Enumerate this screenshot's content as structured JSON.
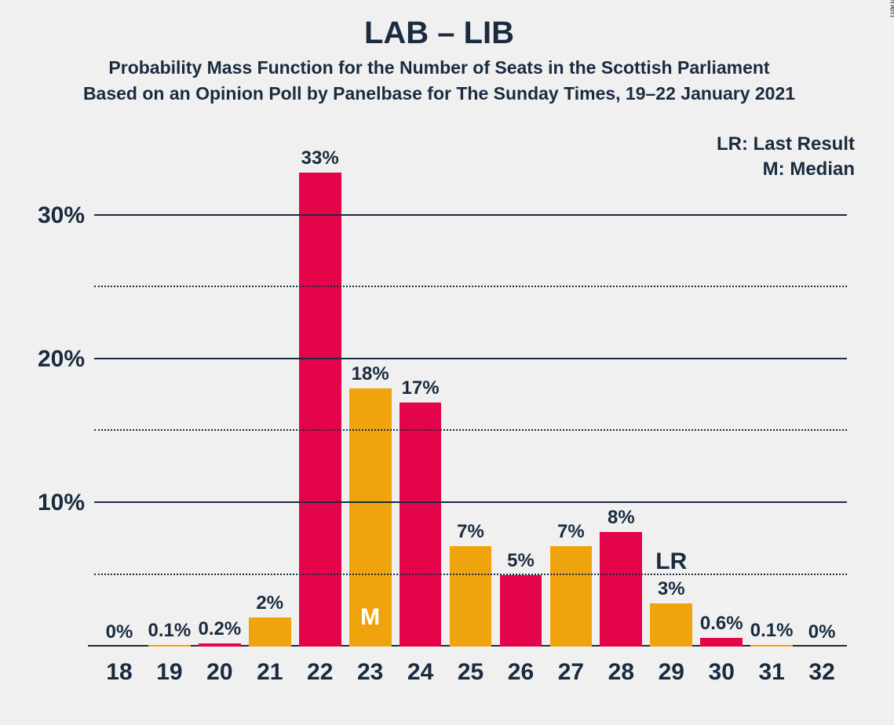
{
  "chart": {
    "type": "bar",
    "title": "LAB – LIB",
    "title_fontsize": 40,
    "subtitle1": "Probability Mass Function for the Number of Seats in the Scottish Parliament",
    "subtitle2": "Based on an Opinion Poll by Panelbase for The Sunday Times, 19–22 January 2021",
    "subtitle_fontsize": 23,
    "title_color": "#1a2b40",
    "background_color": "#f0f0f0",
    "legend": {
      "lr": "LR: Last Result",
      "m": "M: Median",
      "fontsize": 24
    },
    "y_axis": {
      "min": 0,
      "max": 33,
      "major_ticks": [
        10,
        20,
        30
      ],
      "minor_ticks": [
        5,
        15,
        25
      ],
      "tick_label_suffix": "%",
      "tick_fontsize": 30,
      "major_gridline_color": "#1a2b40",
      "minor_gridline_color": "#1a2b40"
    },
    "x_axis": {
      "categories": [
        18,
        19,
        20,
        21,
        22,
        23,
        24,
        25,
        26,
        27,
        28,
        29,
        30,
        31,
        32
      ],
      "tick_fontsize": 30
    },
    "bars": [
      {
        "x": 18,
        "value": 0,
        "label": "0%",
        "color": "#e30449"
      },
      {
        "x": 19,
        "value": 0.1,
        "label": "0.1%",
        "color": "#efa40d"
      },
      {
        "x": 20,
        "value": 0.2,
        "label": "0.2%",
        "color": "#e30449"
      },
      {
        "x": 21,
        "value": 2,
        "label": "2%",
        "color": "#efa40d"
      },
      {
        "x": 22,
        "value": 33,
        "label": "33%",
        "color": "#e30449"
      },
      {
        "x": 23,
        "value": 18,
        "label": "18%",
        "color": "#efa40d",
        "inner_label": "M"
      },
      {
        "x": 24,
        "value": 17,
        "label": "17%",
        "color": "#e30449"
      },
      {
        "x": 25,
        "value": 7,
        "label": "7%",
        "color": "#efa40d"
      },
      {
        "x": 26,
        "value": 5,
        "label": "5%",
        "color": "#e30449"
      },
      {
        "x": 27,
        "value": 7,
        "label": "7%",
        "color": "#efa40d"
      },
      {
        "x": 28,
        "value": 8,
        "label": "8%",
        "color": "#e30449"
      },
      {
        "x": 29,
        "value": 3,
        "label": "3%",
        "color": "#efa40d",
        "annotation": "LR"
      },
      {
        "x": 30,
        "value": 0.6,
        "label": "0.6%",
        "color": "#e30449"
      },
      {
        "x": 31,
        "value": 0.1,
        "label": "0.1%",
        "color": "#efa40d"
      },
      {
        "x": 32,
        "value": 0,
        "label": "0%",
        "color": "#e30449"
      }
    ],
    "bar_label_fontsize": 24,
    "inner_label_fontsize": 30,
    "lr_label_fontsize": 30,
    "colors": {
      "red": "#e30449",
      "orange": "#efa40d",
      "text": "#1a2b40"
    }
  },
  "copyright": "© 2021 Filip van Laenen"
}
